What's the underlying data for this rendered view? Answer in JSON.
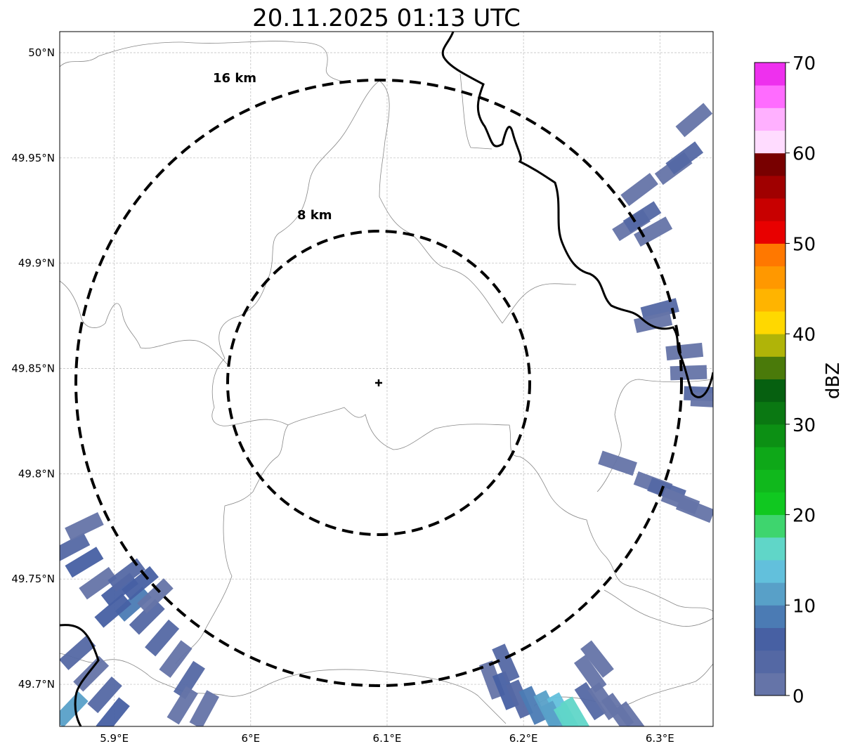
{
  "title": "20.11.2025 01:13 UTC",
  "chart_data": {
    "type": "heatmap",
    "title": "20.11.2025 01:13 UTC",
    "xlim": [
      5.86,
      6.339
    ],
    "ylim": [
      49.68,
      50.01
    ],
    "x_ticks": [
      {
        "v": 5.9,
        "label": "5.9°E"
      },
      {
        "v": 6.0,
        "label": "6°E"
      },
      {
        "v": 6.1,
        "label": "6.1°E"
      },
      {
        "v": 6.2,
        "label": "6.2°E"
      },
      {
        "v": 6.3,
        "label": "6.3°E"
      }
    ],
    "y_ticks": [
      {
        "v": 50.0,
        "label": "50°N"
      },
      {
        "v": 49.95,
        "label": "49.95°N"
      },
      {
        "v": 49.9,
        "label": "49.9°N"
      },
      {
        "v": 49.85,
        "label": "49.85°N"
      },
      {
        "v": 49.8,
        "label": "49.8°N"
      },
      {
        "v": 49.75,
        "label": "49.75°N"
      },
      {
        "v": 49.7,
        "label": "49.7°N"
      }
    ],
    "grid": true,
    "radar_center": {
      "lon": 6.096,
      "lat": 49.843
    },
    "range_rings": [
      {
        "km": 8,
        "label": "8 km"
      },
      {
        "km": 16,
        "label": "16 km"
      }
    ],
    "colorbar": {
      "label": "dBZ",
      "min": 0,
      "max": 70,
      "step": 2.5,
      "ticks": [
        "0",
        "10",
        "20",
        "30",
        "40",
        "50",
        "60",
        "70"
      ],
      "colors": [
        "#6574a8",
        "#5468a4",
        "#4760a3",
        "#4b7bb4",
        "#58a0c8",
        "#62c0dc",
        "#60d6c8",
        "#3ed56e",
        "#10c820",
        "#10b81c",
        "#0ea818",
        "#0c9014",
        "#0a7812",
        "#066010",
        "#4a7a0a",
        "#b0b408",
        "#ffd800",
        "#ffb400",
        "#ff9800",
        "#ff7800",
        "#e80000",
        "#c80000",
        "#a00000",
        "#780000",
        "#ffdcff",
        "#ffb0ff",
        "#ff6cff",
        "#ee30ee"
      ]
    },
    "echoes": [
      [
        5.868,
        49.765,
        3
      ],
      [
        5.878,
        49.758,
        5
      ],
      [
        5.888,
        49.748,
        2
      ],
      [
        5.904,
        49.745,
        6
      ],
      [
        5.914,
        49.738,
        8
      ],
      [
        5.924,
        49.732,
        4
      ],
      [
        5.935,
        49.722,
        3
      ],
      [
        5.945,
        49.712,
        2
      ],
      [
        5.955,
        49.702,
        3
      ],
      [
        5.966,
        49.688,
        1
      ],
      [
        5.873,
        49.715,
        4
      ],
      [
        5.883,
        49.705,
        2
      ],
      [
        5.893,
        49.695,
        3
      ],
      [
        5.899,
        49.685,
        5
      ],
      [
        5.868,
        49.688,
        10
      ],
      [
        5.919,
        49.748,
        5
      ],
      [
        5.899,
        49.735,
        7
      ],
      [
        5.878,
        49.775,
        2
      ],
      [
        5.909,
        49.752,
        3
      ],
      [
        5.93,
        49.742,
        1
      ],
      [
        5.95,
        49.69,
        2
      ],
      [
        6.177,
        49.702,
        2
      ],
      [
        6.187,
        49.697,
        5
      ],
      [
        6.197,
        49.693,
        4
      ],
      [
        6.207,
        49.69,
        8
      ],
      [
        6.218,
        49.688,
        11
      ],
      [
        6.228,
        49.687,
        13
      ],
      [
        6.238,
        49.685,
        15
      ],
      [
        6.249,
        49.692,
        3
      ],
      [
        6.259,
        49.692,
        2
      ],
      [
        6.269,
        49.687,
        1
      ],
      [
        6.279,
        49.683,
        2
      ],
      [
        6.249,
        49.705,
        1
      ],
      [
        6.254,
        49.712,
        2
      ],
      [
        6.187,
        49.71,
        3
      ],
      [
        6.223,
        49.683,
        10
      ],
      [
        6.233,
        49.682,
        16
      ],
      [
        6.295,
        49.795,
        2
      ],
      [
        6.305,
        49.792,
        3
      ],
      [
        6.315,
        49.787,
        1
      ],
      [
        6.326,
        49.783,
        2
      ],
      [
        6.269,
        49.805,
        1
      ],
      [
        6.279,
        49.918,
        2
      ],
      [
        6.287,
        49.922,
        3
      ],
      [
        6.295,
        49.915,
        1
      ],
      [
        6.285,
        49.935,
        2
      ],
      [
        6.3,
        49.878,
        3
      ],
      [
        6.295,
        49.872,
        1
      ],
      [
        6.31,
        49.945,
        2
      ],
      [
        6.318,
        49.95,
        3
      ],
      [
        6.325,
        49.968,
        1
      ],
      [
        6.318,
        49.858,
        2
      ],
      [
        6.321,
        49.848,
        1
      ],
      [
        6.331,
        49.838,
        3
      ],
      [
        6.336,
        49.835,
        2
      ]
    ]
  }
}
